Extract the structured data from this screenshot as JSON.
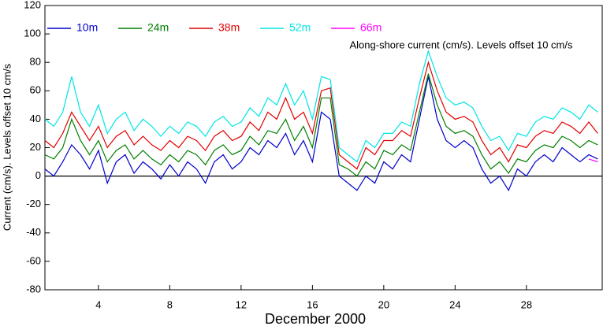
{
  "chart_data": {
    "type": "line",
    "ylabel": "Current (cm/s). Levels offset 10 cm/s",
    "xlabel": "December 2000",
    "annotation": "Along-shore current (cm/s). Levels offset 10 cm/s",
    "x": [
      1,
      1.5,
      2,
      2.5,
      3,
      3.5,
      4,
      4.5,
      5,
      5.5,
      6,
      6.5,
      7,
      7.5,
      8,
      8.5,
      9,
      9.5,
      10,
      10.5,
      11,
      11.5,
      12,
      12.5,
      13,
      13.5,
      14,
      14.5,
      15,
      15.5,
      16,
      16.5,
      17,
      17.5,
      18,
      18.5,
      19,
      19.5,
      20,
      20.5,
      21,
      21.5,
      22,
      22.5,
      23,
      23.5,
      24,
      24.5,
      25,
      25.5,
      26,
      26.5,
      27,
      27.5,
      28,
      28.5,
      29,
      29.5,
      30,
      30.5,
      31,
      31.5,
      32
    ],
    "series": [
      {
        "name": "10m",
        "color": "#0000cc",
        "values": [
          5,
          0,
          10,
          22,
          15,
          5,
          18,
          -5,
          10,
          15,
          2,
          10,
          5,
          -2,
          8,
          0,
          10,
          5,
          -5,
          10,
          15,
          5,
          10,
          20,
          15,
          25,
          20,
          30,
          15,
          25,
          10,
          45,
          40,
          0,
          -5,
          -10,
          0,
          -5,
          10,
          5,
          15,
          10,
          40,
          70,
          40,
          25,
          20,
          25,
          20,
          5,
          -5,
          0,
          -10,
          5,
          0,
          10,
          15,
          10,
          20,
          15,
          10,
          15,
          12
        ]
      },
      {
        "name": "24m",
        "color": "#008000",
        "values": [
          15,
          12,
          20,
          40,
          25,
          15,
          25,
          10,
          18,
          22,
          12,
          18,
          12,
          8,
          15,
          10,
          18,
          15,
          8,
          18,
          22,
          15,
          18,
          28,
          22,
          32,
          30,
          40,
          25,
          35,
          20,
          55,
          55,
          8,
          5,
          0,
          10,
          5,
          18,
          15,
          22,
          18,
          45,
          72,
          50,
          35,
          30,
          32,
          28,
          15,
          5,
          10,
          2,
          12,
          10,
          18,
          22,
          20,
          28,
          25,
          20,
          25,
          22
        ]
      },
      {
        "name": "38m",
        "color": "#e00000",
        "values": [
          25,
          20,
          30,
          45,
          35,
          25,
          35,
          20,
          28,
          32,
          22,
          28,
          22,
          18,
          25,
          20,
          28,
          25,
          18,
          28,
          32,
          25,
          28,
          38,
          32,
          45,
          40,
          55,
          40,
          45,
          30,
          60,
          62,
          15,
          10,
          5,
          20,
          15,
          25,
          25,
          32,
          28,
          55,
          80,
          60,
          45,
          40,
          42,
          38,
          25,
          15,
          20,
          10,
          22,
          20,
          28,
          32,
          30,
          38,
          35,
          30,
          38,
          30
        ]
      },
      {
        "name": "52m",
        "color": "#00e5e5",
        "values": [
          40,
          35,
          45,
          70,
          45,
          35,
          50,
          30,
          40,
          45,
          32,
          40,
          35,
          28,
          35,
          30,
          38,
          35,
          28,
          38,
          42,
          35,
          38,
          48,
          42,
          55,
          50,
          65,
          50,
          60,
          40,
          70,
          68,
          20,
          15,
          10,
          25,
          20,
          30,
          30,
          38,
          35,
          65,
          88,
          70,
          55,
          50,
          52,
          48,
          35,
          25,
          28,
          18,
          30,
          28,
          38,
          42,
          40,
          48,
          45,
          40,
          50,
          45
        ]
      },
      {
        "name": "66m",
        "color": "#ff00ff",
        "values": [
          null,
          null,
          null,
          null,
          null,
          null,
          null,
          null,
          null,
          null,
          null,
          null,
          null,
          null,
          null,
          null,
          null,
          null,
          null,
          null,
          null,
          null,
          null,
          null,
          null,
          null,
          null,
          null,
          null,
          null,
          null,
          null,
          null,
          null,
          null,
          null,
          null,
          null,
          null,
          null,
          null,
          null,
          null,
          null,
          null,
          null,
          null,
          null,
          null,
          null,
          null,
          null,
          null,
          null,
          null,
          null,
          null,
          null,
          null,
          null,
          null,
          12,
          10
        ]
      }
    ],
    "xlim": [
      1,
      32.25
    ],
    "xticks": [
      4,
      8,
      12,
      16,
      20,
      24,
      28
    ],
    "ylim": [
      -80,
      120
    ],
    "yticks": [
      -80,
      -60,
      -40,
      -20,
      0,
      20,
      40,
      60,
      80,
      100,
      120
    ],
    "hline": 0,
    "legend": "top-left"
  }
}
